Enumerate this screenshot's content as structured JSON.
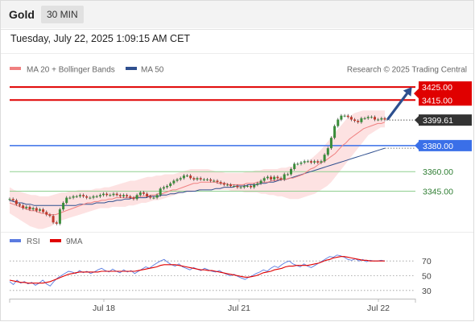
{
  "header": {
    "title": "Gold",
    "timeframe": "30 MIN"
  },
  "timestamp": "Tuesday, July 22, 2025 1:09:15 AM CET",
  "colors": {
    "ma20": "#f08080",
    "ma50": "#2f4f8f",
    "band_fill": "#fde2e2",
    "up_candle": "#3a8c3a",
    "down_candle": "#c0392b",
    "resistance": "#e00000",
    "pivot": "#3a6fe8",
    "support": "#8fcf8f",
    "price_tag": "#333333",
    "rsi": "#5b7be0",
    "rsi_ma": "#e00000",
    "arrow": "#2d4f8f"
  },
  "legend": {
    "ma20": "MA 20 + Bollinger Bands",
    "ma50": "MA 50",
    "rsi": "RSI",
    "rsi_ma": "9MA"
  },
  "watermark": "Research © 2025 Trading Central",
  "chart_data": [
    {
      "type": "candlestick",
      "title": "Gold",
      "x_tick_labels": [
        "Jul 18",
        "Jul 21",
        "Jul 22"
      ],
      "ylim": [
        3315,
        3430
      ],
      "last_price": 3399.61,
      "levels": [
        {
          "name": "resistance",
          "value": 3425.0,
          "label": "3425.00"
        },
        {
          "name": "resistance",
          "value": 3415.0,
          "label": "3415.00"
        },
        {
          "name": "last",
          "value": 3399.61,
          "label": "3399.61"
        },
        {
          "name": "pivot",
          "value": 3380.0,
          "label": "3380.00"
        },
        {
          "name": "support",
          "value": 3360.0,
          "label": "3360.00"
        },
        {
          "name": "support",
          "value": 3345.0,
          "label": "3345.00"
        }
      ],
      "close": [
        3339,
        3338,
        3335,
        3334,
        3332,
        3333,
        3331,
        3332,
        3330,
        3331,
        3329,
        3327,
        3326,
        3321,
        3320,
        3331,
        3336,
        3340,
        3340,
        3341,
        3341,
        3342,
        3341,
        3340,
        3340,
        3341,
        3341,
        3342,
        3343,
        3342,
        3342,
        3343,
        3342,
        3341,
        3342,
        3341,
        3340,
        3339,
        3342,
        3344,
        3343,
        3341,
        3340,
        3340,
        3342,
        3347,
        3348,
        3349,
        3351,
        3353,
        3354,
        3355,
        3357,
        3357,
        3355,
        3354,
        3355,
        3354,
        3354,
        3354,
        3353,
        3353,
        3352,
        3351,
        3350,
        3350,
        3349,
        3349,
        3348,
        3348,
        3349,
        3349,
        3348,
        3350,
        3351,
        3353,
        3355,
        3356,
        3354,
        3356,
        3355,
        3354,
        3358,
        3358,
        3362,
        3366,
        3366,
        3367,
        3368,
        3368,
        3367,
        3368,
        3367,
        3368,
        3373,
        3378,
        3386,
        3395,
        3400,
        3403,
        3403,
        3402,
        3400,
        3399,
        3398,
        3401,
        3401,
        3402,
        3402,
        3400,
        3400,
        3401,
        3400
      ],
      "ma20": [
        3336,
        3335,
        3334,
        3333,
        3332,
        3331,
        3330,
        3330,
        3329,
        3328,
        3328,
        3327,
        3327,
        3327,
        3328,
        3329,
        3330,
        3331,
        3332,
        3333,
        3334,
        3335,
        3336,
        3336,
        3337,
        3337,
        3338,
        3338,
        3339,
        3339,
        3340,
        3340,
        3340,
        3340,
        3340,
        3340,
        3341,
        3341,
        3341,
        3341,
        3342,
        3342,
        3343,
        3343,
        3344,
        3345,
        3346,
        3346,
        3347,
        3348,
        3349,
        3350,
        3351,
        3351,
        3352,
        3352,
        3352,
        3352,
        3352,
        3351,
        3351,
        3351,
        3350,
        3350,
        3350,
        3350,
        3350,
        3351,
        3351,
        3351,
        3352,
        3352,
        3352,
        3352,
        3353,
        3353,
        3354,
        3354,
        3354,
        3355,
        3355,
        3356,
        3357,
        3358,
        3360,
        3362,
        3363,
        3365,
        3367,
        3368,
        3370,
        3372,
        3374,
        3377,
        3380,
        3382,
        3385,
        3387,
        3389,
        3391,
        3393,
        3394,
        3395,
        3396,
        3397,
        3397,
        3398
      ],
      "bb_upper": [
        3348,
        3346,
        3345,
        3344,
        3343,
        3342,
        3342,
        3341,
        3341,
        3341,
        3342,
        3343,
        3344,
        3344,
        3345,
        3345,
        3346,
        3346,
        3346,
        3346,
        3347,
        3347,
        3348,
        3348,
        3349,
        3350,
        3351,
        3352,
        3353,
        3353,
        3354,
        3355,
        3356,
        3356,
        3357,
        3357,
        3358,
        3358,
        3358,
        3359,
        3360,
        3361,
        3362,
        3362,
        3362,
        3362,
        3362,
        3361,
        3360,
        3360,
        3359,
        3359,
        3359,
        3359,
        3359,
        3360,
        3360,
        3361,
        3361,
        3362,
        3362,
        3362,
        3362,
        3363,
        3363,
        3364,
        3364,
        3365,
        3366,
        3368,
        3370,
        3373,
        3376,
        3380,
        3384,
        3388,
        3392,
        3396,
        3400,
        3403,
        3405,
        3406,
        3407,
        3407,
        3407,
        3407,
        3407,
        3407
      ],
      "bb_lower": [
        3328,
        3326,
        3324,
        3322,
        3320,
        3318,
        3317,
        3316,
        3316,
        3317,
        3318,
        3320,
        3322,
        3323,
        3324,
        3325,
        3326,
        3327,
        3328,
        3329,
        3330,
        3331,
        3332,
        3332,
        3332,
        3333,
        3333,
        3333,
        3333,
        3334,
        3334,
        3335,
        3336,
        3336,
        3337,
        3338,
        3338,
        3339,
        3340,
        3341,
        3342,
        3343,
        3344,
        3344,
        3344,
        3345,
        3345,
        3346,
        3346,
        3346,
        3346,
        3346,
        3346,
        3346,
        3345,
        3345,
        3345,
        3344,
        3344,
        3344,
        3344,
        3343,
        3343,
        3342,
        3342,
        3341,
        3341,
        3340,
        3339,
        3339,
        3339,
        3340,
        3341,
        3342,
        3343,
        3345,
        3347,
        3349,
        3352,
        3356,
        3360,
        3364,
        3368,
        3372,
        3376,
        3380,
        3384,
        3388,
        3390,
        3392,
        3394,
        3394
      ],
      "ma50": [
        3338,
        3337,
        3336,
        3336,
        3335,
        3335,
        3334,
        3334,
        3334,
        3334,
        3334,
        3334,
        3334,
        3334,
        3334,
        3334,
        3334,
        3335,
        3335,
        3335,
        3335,
        3336,
        3336,
        3336,
        3337,
        3337,
        3338,
        3338,
        3339,
        3339,
        3340,
        3340,
        3340,
        3340,
        3341,
        3341,
        3341,
        3342,
        3342,
        3343,
        3343,
        3344,
        3344,
        3345,
        3345,
        3345,
        3346,
        3346,
        3346,
        3346,
        3347,
        3347,
        3348,
        3348,
        3348,
        3349,
        3349,
        3349,
        3350,
        3350,
        3350,
        3351,
        3351,
        3352,
        3352,
        3353,
        3354,
        3354,
        3355,
        3356,
        3357,
        3358,
        3359,
        3360,
        3361,
        3362,
        3363,
        3364,
        3365,
        3366,
        3367,
        3368,
        3369,
        3370,
        3371,
        3372,
        3373,
        3374,
        3375,
        3376,
        3377,
        3378
      ]
    },
    {
      "type": "line",
      "title": "RSI",
      "ylim": [
        20,
        80
      ],
      "yticks": [
        70,
        50,
        30
      ],
      "rsi": [
        42,
        38,
        44,
        40,
        42,
        39,
        41,
        37,
        40,
        44,
        39,
        36,
        42,
        47,
        50,
        53,
        56,
        55,
        53,
        57,
        54,
        56,
        53,
        55,
        58,
        60,
        57,
        55,
        59,
        56,
        54,
        58,
        55,
        57,
        53,
        56,
        59,
        62,
        60,
        64,
        67,
        70,
        72,
        68,
        65,
        63,
        66,
        62,
        60,
        58,
        61,
        59,
        57,
        60,
        58,
        56,
        55,
        57,
        54,
        52,
        50,
        52,
        49,
        47,
        45,
        48,
        50,
        53,
        55,
        58,
        56,
        60,
        63,
        61,
        65,
        68,
        70,
        66,
        64,
        62,
        66,
        63,
        61,
        64,
        67,
        70,
        73,
        76,
        75,
        78,
        77,
        75,
        72,
        71,
        73,
        70,
        72,
        69,
        71,
        70,
        70,
        71,
        70
      ],
      "ma9": [
        44,
        43,
        42,
        41,
        41,
        40,
        40,
        40,
        40,
        40,
        41,
        42,
        44,
        46,
        48,
        50,
        52,
        53,
        54,
        55,
        55,
        55,
        55,
        55,
        55,
        56,
        56,
        56,
        56,
        56,
        56,
        56,
        56,
        56,
        56,
        57,
        58,
        59,
        60,
        61,
        62,
        64,
        65,
        65,
        65,
        65,
        64,
        63,
        62,
        61,
        60,
        59,
        58,
        58,
        57,
        57,
        56,
        55,
        54,
        53,
        52,
        51,
        50,
        49,
        48,
        48,
        49,
        50,
        52,
        54,
        55,
        56,
        58,
        59,
        60,
        62,
        63,
        63,
        64,
        64,
        64,
        64,
        65,
        66,
        67,
        69,
        71,
        72,
        74,
        75,
        76,
        76,
        75,
        74,
        73,
        72,
        71,
        71,
        70,
        70,
        70,
        70,
        70
      ]
    }
  ]
}
